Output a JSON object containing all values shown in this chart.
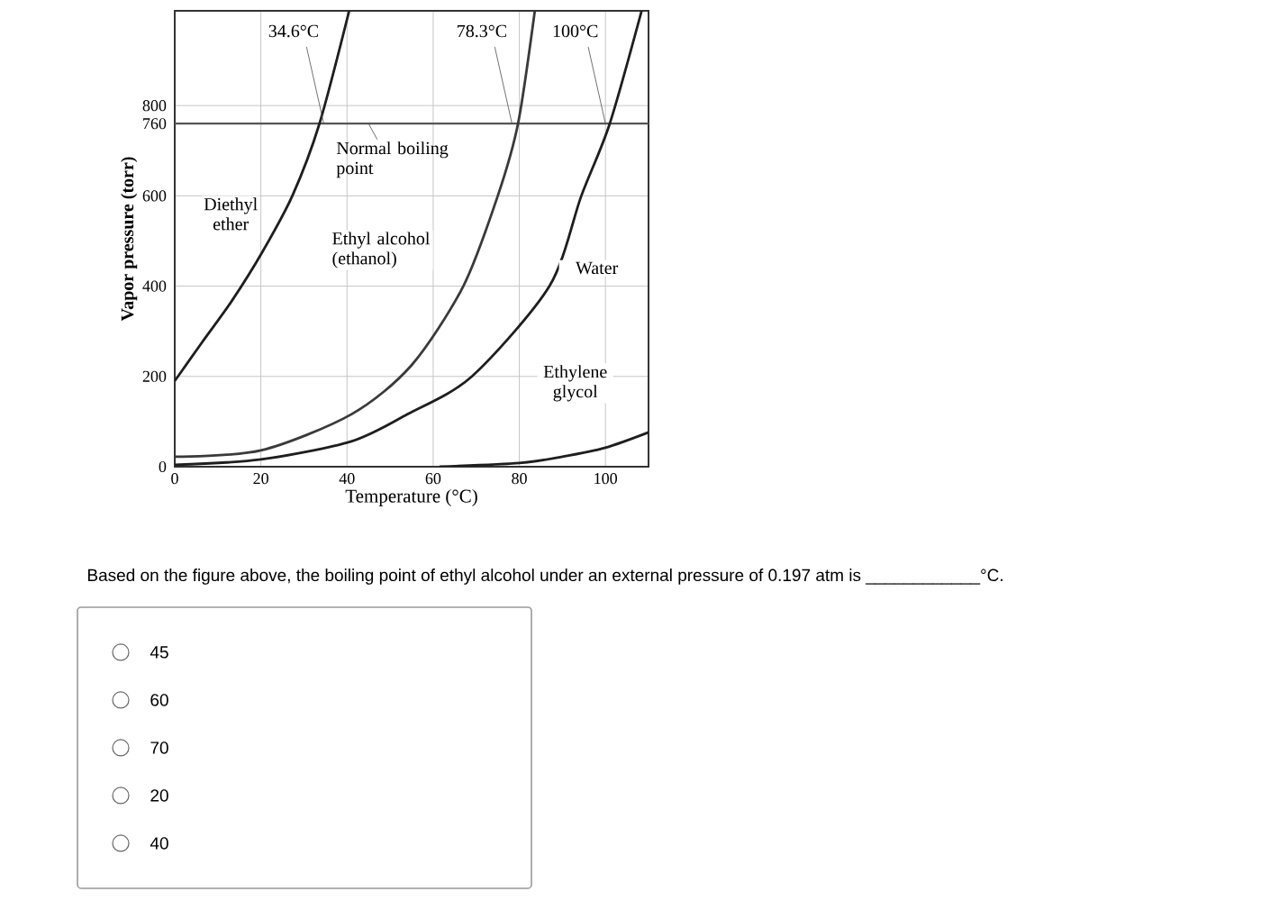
{
  "chart_data": {
    "type": "line",
    "xlabel": "Temperature (°C)",
    "ylabel": "Vapor pressure (torr)",
    "xlim": [
      0,
      110
    ],
    "ylim": [
      0,
      1010
    ],
    "xticks": [
      0,
      20,
      40,
      60,
      80,
      100
    ],
    "yticks": [
      0,
      200,
      400,
      600,
      760,
      800
    ],
    "grid": true,
    "series": [
      {
        "name": "Diethyl ether",
        "color": "#1e1e1e",
        "x": [
          0,
          6.3,
          13.3,
          20.3,
          27.3,
          33.6,
          40.5
        ],
        "values": [
          190,
          275,
          368,
          475,
          600,
          760,
          1010
        ]
      },
      {
        "name": "Ethyl alcohol (ethanol)",
        "color": "#3a3a3a",
        "x": [
          0,
          20,
          41,
          55,
          67,
          75,
          79.7,
          83.6
        ],
        "values": [
          22,
          36,
          116,
          225,
          400,
          600,
          760,
          1010
        ]
      },
      {
        "name": "Water",
        "color": "#1e1e1e",
        "x": [
          0,
          20,
          41,
          54,
          69,
          87,
          94.4,
          101,
          108.4
        ],
        "values": [
          4,
          16,
          56,
          116,
          200,
          400,
          600,
          760,
          1010
        ]
      },
      {
        "name": "Ethylene glycol",
        "color": "#1e1e1e",
        "x": [
          61.5,
          80,
          90,
          100,
          110
        ],
        "values": [
          0,
          8,
          22,
          42,
          76
        ]
      }
    ],
    "ref_lines": [
      {
        "axis": "y",
        "value": 760,
        "label": "Normal boiling point",
        "color": "#555555"
      }
    ],
    "annotations": [
      {
        "text": "34.6°C",
        "x": 34.6,
        "y": 760
      },
      {
        "text": "78.3°C",
        "x": 78.3,
        "y": 760
      },
      {
        "text": "100°C",
        "x": 100,
        "y": 760
      },
      "Based on the figure above, the boiling point of ethyl alcohol under an external pressure of 0.197 atm is ____________°C.",
      "45",
      "60",
      "70",
      "20",
      "40"
    ]
  }
}
